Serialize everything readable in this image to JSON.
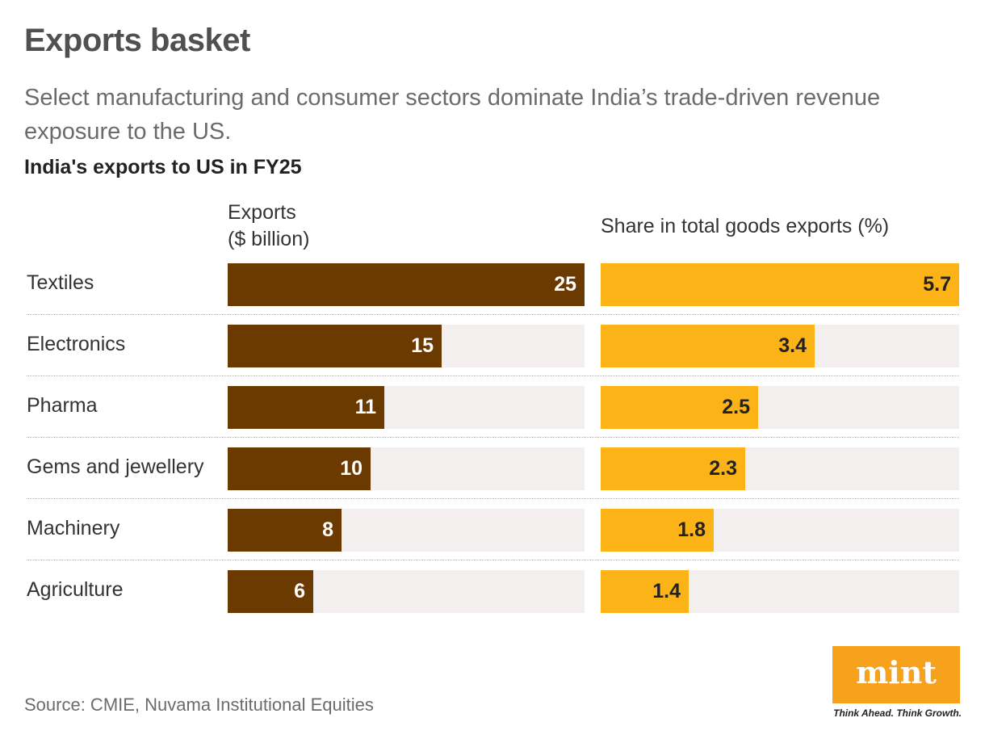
{
  "header": {
    "title": "Exports basket",
    "subtitle": "Select manufacturing and consumer sectors dominate India’s trade-driven revenue exposure to the US."
  },
  "chart_data": {
    "type": "bar",
    "title": "India's exports to US in FY25",
    "categories": [
      "Textiles",
      "Electronics",
      "Pharma",
      "Gems and jewellery",
      "Machinery",
      "Agriculture"
    ],
    "series": [
      {
        "name": "Exports ($ billion)",
        "values": [
          25,
          15,
          11,
          10,
          8,
          6
        ],
        "color": "#6b3a00"
      },
      {
        "name": "Share in total goods exports (%)",
        "values": [
          5.7,
          3.4,
          2.5,
          2.3,
          1.8,
          1.4
        ],
        "color": "#fbb317"
      }
    ],
    "column_headers": {
      "exports_line1": "Exports",
      "exports_line2": "($ billion)",
      "share": "Share in total goods exports (%)"
    },
    "track_color": "#f3efee",
    "orientation": "horizontal"
  },
  "footer": {
    "source": "Source: CMIE, Nuvama Institutional Equities",
    "logo": "mint",
    "tagline": "Think Ahead. Think Growth."
  }
}
